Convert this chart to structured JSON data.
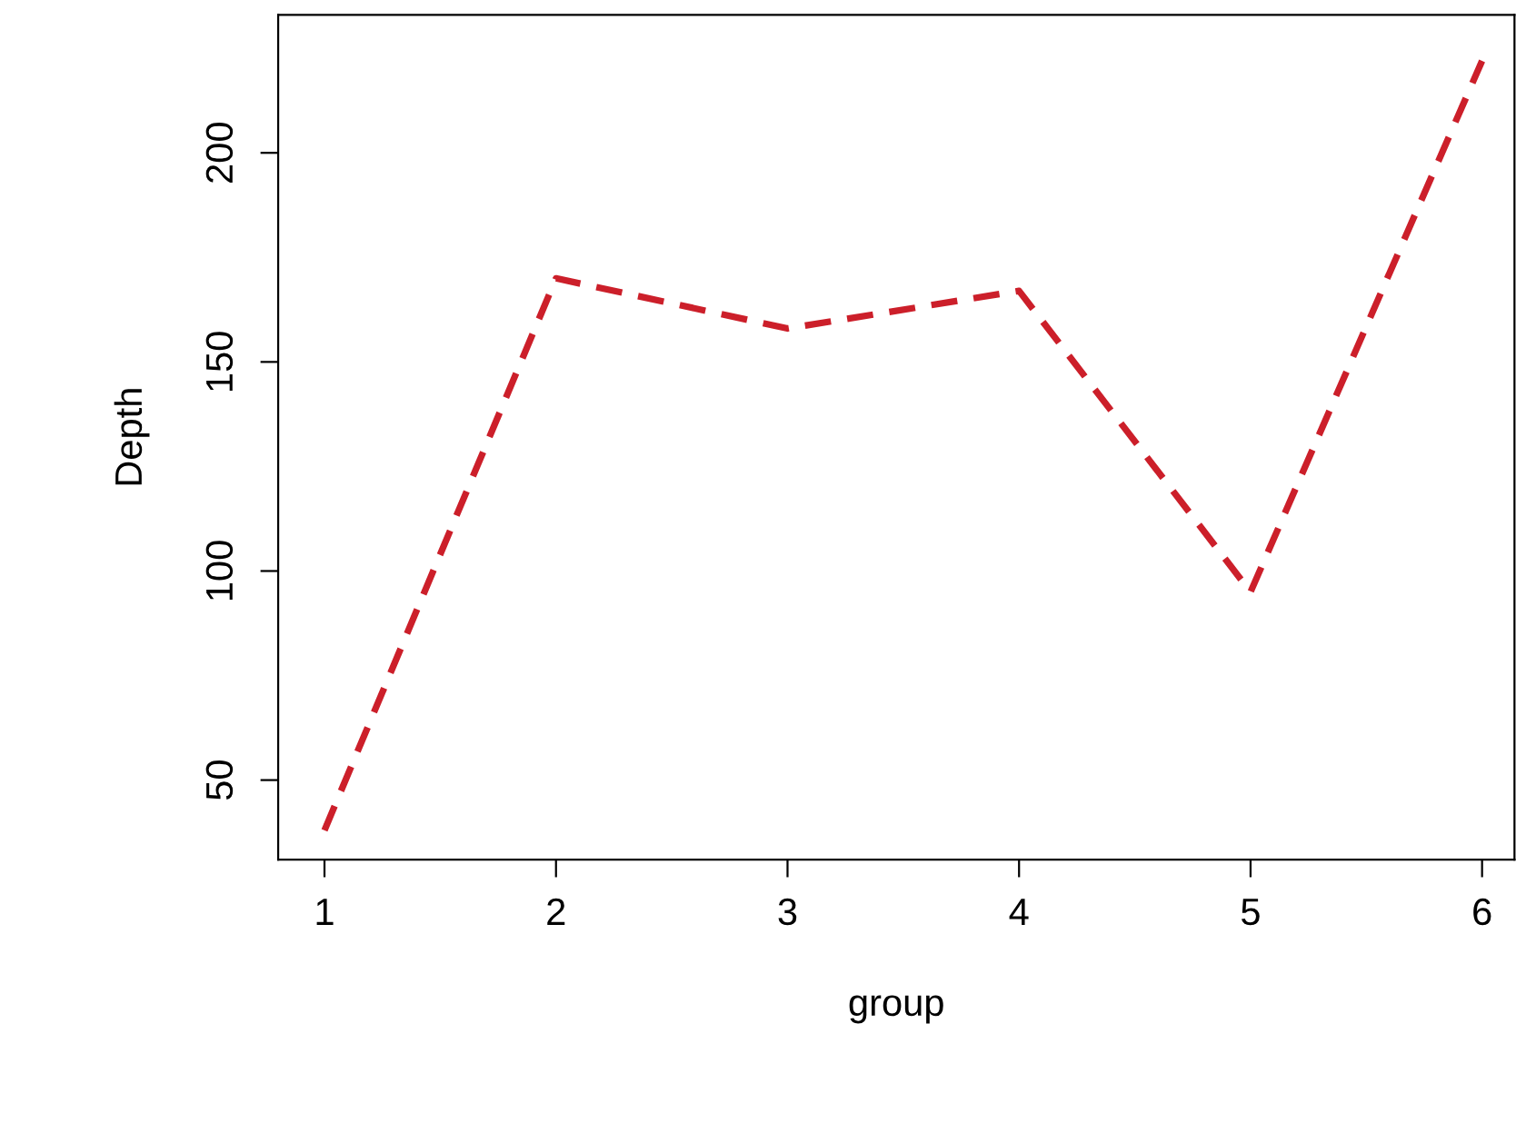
{
  "chart_data": {
    "type": "line",
    "xlabel": "group",
    "ylabel": "Depth",
    "x": [
      1,
      2,
      3,
      4,
      5,
      6
    ],
    "series": [
      {
        "color": "#cc1f2a",
        "values": [
          38,
          170,
          158,
          167,
          95,
          222
        ]
      }
    ],
    "xlim": [
      0.8,
      6.14
    ],
    "ylim": [
      31,
      233
    ],
    "xticks": [
      1,
      2,
      3,
      4,
      5,
      6
    ],
    "yticks": [
      50,
      100,
      150,
      200
    ],
    "grid": false,
    "legend": false,
    "line_style": "dashed",
    "marker": "none"
  }
}
